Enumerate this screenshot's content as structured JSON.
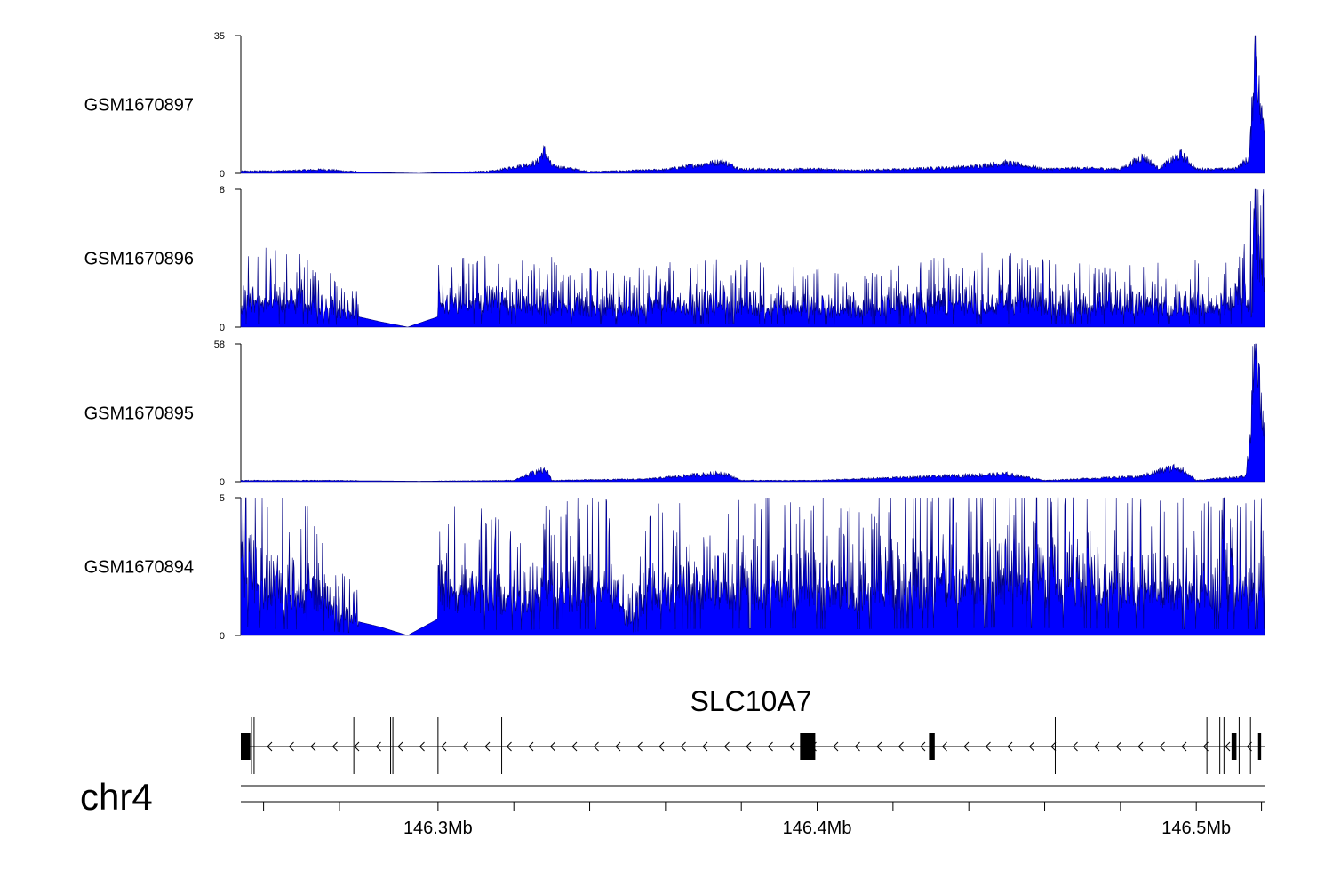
{
  "chart_data": {
    "type": "area",
    "chromosome": "chr4",
    "x_range_mb": [
      146.248,
      146.518
    ],
    "tracks": [
      {
        "name": "GSM1670897",
        "ylim": [
          0,
          35
        ],
        "tick_labels": [
          "35",
          "0"
        ],
        "profile": [
          [
            146.248,
            0.5
          ],
          [
            146.26,
            0.6
          ],
          [
            146.27,
            0.9
          ],
          [
            146.276,
            0.5
          ],
          [
            146.285,
            0.2
          ],
          [
            146.295,
            0.0
          ],
          [
            146.3,
            0.2
          ],
          [
            146.31,
            0.4
          ],
          [
            146.315,
            0.6
          ],
          [
            146.326,
            2.5
          ],
          [
            146.328,
            5.5
          ],
          [
            146.33,
            1.8
          ],
          [
            146.34,
            0.4
          ],
          [
            146.35,
            0.6
          ],
          [
            146.36,
            0.9
          ],
          [
            146.375,
            2.8
          ],
          [
            146.38,
            1.0
          ],
          [
            146.39,
            0.9
          ],
          [
            146.4,
            1.0
          ],
          [
            146.41,
            0.7
          ],
          [
            146.42,
            0.9
          ],
          [
            146.43,
            1.2
          ],
          [
            146.44,
            1.5
          ],
          [
            146.45,
            2.5
          ],
          [
            146.46,
            1.0
          ],
          [
            146.47,
            1.2
          ],
          [
            146.48,
            1.0
          ],
          [
            146.486,
            4.0
          ],
          [
            146.49,
            1.2
          ],
          [
            146.496,
            4.5
          ],
          [
            146.5,
            1.0
          ],
          [
            146.51,
            1.0
          ],
          [
            146.514,
            3.5
          ],
          [
            146.515,
            20.0
          ],
          [
            146.5155,
            34.0
          ],
          [
            146.516,
            26.0
          ],
          [
            146.517,
            14.0
          ],
          [
            146.518,
            12.0
          ]
        ]
      },
      {
        "name": "GSM1670896",
        "ylim": [
          0,
          8
        ],
        "tick_labels": [
          "8",
          "0"
        ],
        "profile": [
          [
            146.248,
            1.3
          ],
          [
            146.256,
            1.4
          ],
          [
            146.264,
            1.3
          ],
          [
            146.279,
            0.6
          ],
          [
            146.285,
            0.3
          ],
          [
            146.292,
            0.0
          ],
          [
            146.3,
            0.6
          ],
          [
            146.3,
            1.2
          ],
          [
            146.31,
            1.3
          ],
          [
            146.33,
            1.2
          ],
          [
            146.35,
            0.9
          ],
          [
            146.355,
            1.1
          ],
          [
            146.37,
            1.2
          ],
          [
            146.39,
            1.1
          ],
          [
            146.41,
            0.9
          ],
          [
            146.43,
            1.2
          ],
          [
            146.45,
            1.3
          ],
          [
            146.47,
            1.1
          ],
          [
            146.49,
            1.1
          ],
          [
            146.505,
            1.2
          ],
          [
            146.514,
            1.5
          ],
          [
            146.515,
            6.0
          ],
          [
            146.5155,
            8.0
          ],
          [
            146.516,
            5.0
          ],
          [
            146.518,
            2.5
          ]
        ]
      },
      {
        "name": "GSM1670895",
        "ylim": [
          0,
          58
        ],
        "tick_labels": [
          "58",
          "0"
        ],
        "profile": [
          [
            146.248,
            0.5
          ],
          [
            146.27,
            0.5
          ],
          [
            146.295,
            0.2
          ],
          [
            146.32,
            0.5
          ],
          [
            146.327,
            4.5
          ],
          [
            146.329,
            4.0
          ],
          [
            146.33,
            0.5
          ],
          [
            146.355,
            1.0
          ],
          [
            146.375,
            3.5
          ],
          [
            146.38,
            0.5
          ],
          [
            146.4,
            0.5
          ],
          [
            146.45,
            3.0
          ],
          [
            146.46,
            0.5
          ],
          [
            146.485,
            2.0
          ],
          [
            146.495,
            6.0
          ],
          [
            146.5,
            0.5
          ],
          [
            146.513,
            2.0
          ],
          [
            146.5145,
            20.0
          ],
          [
            146.515,
            50.0
          ],
          [
            146.5155,
            57.0
          ],
          [
            146.516,
            48.0
          ],
          [
            146.517,
            30.0
          ],
          [
            146.518,
            20.0
          ]
        ]
      },
      {
        "name": "GSM1670894",
        "ylim": [
          0,
          5
        ],
        "tick_labels": [
          "5",
          "0"
        ],
        "profile": [
          [
            146.248,
            5.0
          ],
          [
            146.249,
            2.0
          ],
          [
            146.256,
            1.6
          ],
          [
            146.266,
            1.4
          ],
          [
            146.279,
            0.5
          ],
          [
            146.285,
            0.3
          ],
          [
            146.292,
            0.0
          ],
          [
            146.3,
            0.6
          ],
          [
            146.3,
            1.5
          ],
          [
            146.31,
            1.4
          ],
          [
            146.32,
            1.3
          ],
          [
            146.33,
            1.5
          ],
          [
            146.345,
            1.6
          ],
          [
            146.35,
            0.5
          ],
          [
            146.355,
            1.4
          ],
          [
            146.37,
            1.6
          ],
          [
            146.39,
            1.7
          ],
          [
            146.41,
            1.5
          ],
          [
            146.43,
            1.7
          ],
          [
            146.45,
            1.9
          ],
          [
            146.47,
            1.7
          ],
          [
            146.49,
            1.6
          ],
          [
            146.51,
            1.5
          ],
          [
            146.518,
            1.6
          ]
        ]
      }
    ],
    "gene": {
      "name": "SLC10A7",
      "strand": "-",
      "start_mb": 146.248,
      "end_mb": 146.518,
      "exons_mb": [
        [
          146.248,
          146.2505
        ],
        [
          146.2508,
          146.2511
        ],
        [
          146.2515,
          146.2518
        ],
        [
          146.2778,
          146.2781
        ],
        [
          146.2875,
          146.288
        ],
        [
          146.2881,
          146.2884
        ],
        [
          146.3,
          146.3003
        ],
        [
          146.3168,
          146.3171
        ],
        [
          146.3955,
          146.3995
        ],
        [
          146.4295,
          146.431
        ],
        [
          146.4628,
          146.4632
        ],
        [
          146.5028,
          146.5031
        ],
        [
          146.5062,
          146.5065
        ],
        [
          146.5073,
          146.5076
        ],
        [
          146.5093,
          146.5106
        ],
        [
          146.5113,
          146.5116
        ],
        [
          146.5143,
          146.5146
        ],
        [
          146.5163,
          146.5171
        ]
      ]
    },
    "x_axis": {
      "labeled_ticks": [
        {
          "value": 146.3,
          "label": "146.3Mb"
        },
        {
          "value": 146.4,
          "label": "146.4Mb"
        },
        {
          "value": 146.5,
          "label": "146.5Mb"
        }
      ],
      "minor_ticks_mb": [
        146.254,
        146.274,
        146.32,
        146.34,
        146.36,
        146.38,
        146.42,
        146.44,
        146.46,
        146.48,
        146.5172
      ]
    }
  }
}
